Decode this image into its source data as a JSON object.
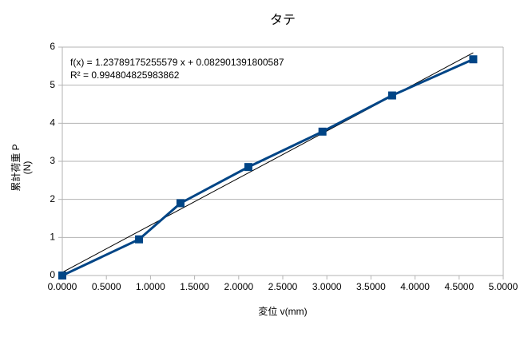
{
  "chart_data": {
    "type": "line",
    "title": "タテ",
    "x_label": "変位 v(mm)",
    "y_label": [
      "累計荷重 P",
      "(N)"
    ],
    "annotations": [
      "f(x) = 1.23789175255579 x + 0.082901391800587",
      "R² = 0.994804825983862"
    ],
    "trendline": {
      "slope": 1.23789175255579,
      "intercept": 0.082901391800587,
      "color": "#000000"
    },
    "x": [
      0,
      0.87,
      1.34,
      2.11,
      2.95,
      3.74,
      4.66
    ],
    "series": [
      {
        "name": "累計荷重 P",
        "color": "#004586",
        "values": [
          0,
          0.95,
          1.9,
          2.85,
          3.78,
          4.73,
          5.68
        ]
      }
    ],
    "xlim": [
      0,
      5
    ],
    "xticks": [
      {
        "value": 0,
        "label": "0.0000"
      },
      {
        "value": 0.5,
        "label": "0.5000"
      },
      {
        "value": 1,
        "label": "1.0000"
      },
      {
        "value": 1.5,
        "label": "1.5000"
      },
      {
        "value": 2,
        "label": "2.0000"
      },
      {
        "value": 2.5,
        "label": "2.5000"
      },
      {
        "value": 3,
        "label": "3.0000"
      },
      {
        "value": 3.5,
        "label": "3.5000"
      },
      {
        "value": 4,
        "label": "4.0000"
      },
      {
        "value": 4.5,
        "label": "4.5000"
      },
      {
        "value": 5,
        "label": "5.0000"
      }
    ],
    "ylim": [
      0,
      6
    ],
    "yticks": [
      0,
      1,
      2,
      3,
      4,
      5,
      6
    ],
    "grid": true
  }
}
